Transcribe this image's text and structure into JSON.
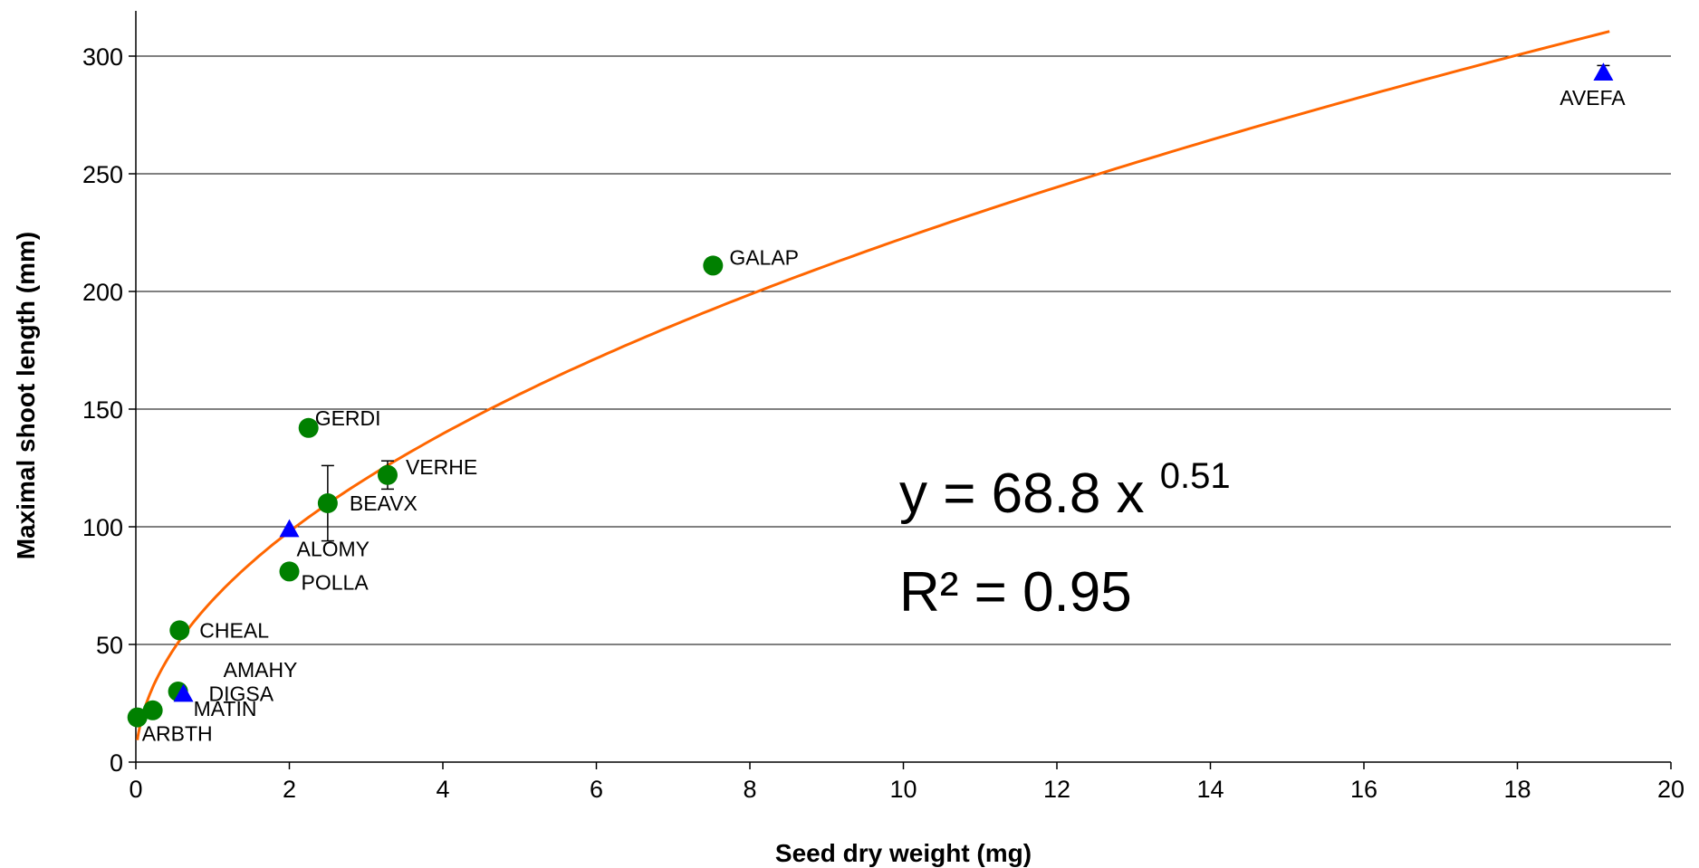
{
  "chart_data": {
    "type": "scatter",
    "xlabel": "Seed dry weight (mg)",
    "ylabel": "Maximal shoot length (mm)",
    "xlim": [
      0,
      20
    ],
    "ylim": [
      0,
      300
    ],
    "x_ticks": [
      0,
      2,
      4,
      6,
      8,
      10,
      12,
      14,
      16,
      18,
      20
    ],
    "y_ticks": [
      0,
      50,
      100,
      150,
      200,
      250,
      300
    ],
    "grid": "horizontal",
    "legend": "none",
    "colors": {
      "circle": "#008000",
      "triangle": "#0000ff",
      "fit": "#ff6600"
    },
    "points": [
      {
        "label": "ARBTH",
        "x": 0.02,
        "y": 19,
        "marker": "circle"
      },
      {
        "label": "MATIN",
        "x": 0.22,
        "y": 22,
        "marker": "circle"
      },
      {
        "label": "AMAHY",
        "x": 0.55,
        "y": 30,
        "marker": "circle"
      },
      {
        "label": "DIGSA",
        "x": 0.62,
        "y": 29,
        "marker": "triangle"
      },
      {
        "label": "CHEAL",
        "x": 0.57,
        "y": 56,
        "marker": "circle"
      },
      {
        "label": "POLLA",
        "x": 2.0,
        "y": 81,
        "marker": "circle"
      },
      {
        "label": "ALOMY",
        "x": 2.0,
        "y": 99,
        "marker": "triangle"
      },
      {
        "label": "BEAVX",
        "x": 2.5,
        "y": 110,
        "marker": "circle",
        "error": 16
      },
      {
        "label": "GERDI",
        "x": 2.25,
        "y": 142,
        "marker": "circle"
      },
      {
        "label": "VERHE",
        "x": 3.28,
        "y": 122,
        "marker": "circle",
        "error": 6
      },
      {
        "label": "GALAP",
        "x": 7.52,
        "y": 211,
        "marker": "circle"
      },
      {
        "label": "AVEFA",
        "x": 19.12,
        "y": 293,
        "marker": "triangle",
        "error": 3
      }
    ],
    "fit": {
      "coefficient": 68.8,
      "exponent": 0.51,
      "x_range": [
        0.02,
        19.2
      ],
      "equation_text": "y = 68.8 x",
      "equation_exponent": "0.51",
      "r2_text": "R² = 0.95"
    }
  }
}
